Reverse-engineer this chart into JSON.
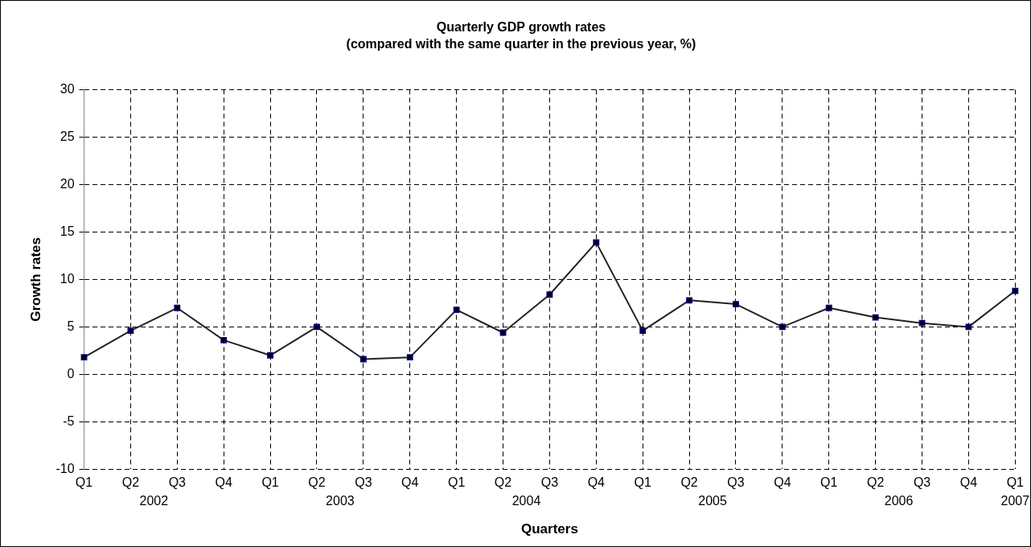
{
  "chart_data": {
    "type": "line",
    "title": "Quarterly GDP growth rates",
    "subtitle": "(compared with the same quarter in the previous year, %)",
    "xlabel": "Quarters",
    "ylabel": "Growth rates",
    "categories": [
      "Q1",
      "Q2",
      "Q3",
      "Q4",
      "Q1",
      "Q2",
      "Q3",
      "Q4",
      "Q1",
      "Q2",
      "Q3",
      "Q4",
      "Q1",
      "Q2",
      "Q3",
      "Q4",
      "Q1",
      "Q2",
      "Q3",
      "Q4",
      "Q1"
    ],
    "annotations": [
      "2002",
      "2003",
      "2004",
      "2005",
      "2006",
      "2007"
    ],
    "series": [
      {
        "color": "#000080",
        "values": [
          1.8,
          4.6,
          7.0,
          3.6,
          2.0,
          5.0,
          1.6,
          1.8,
          6.8,
          4.4,
          8.4,
          13.9,
          4.6,
          7.8,
          7.4,
          5.0,
          7.0,
          6.0,
          5.4,
          5.0,
          8.8
        ]
      }
    ],
    "ylim": [
      -10,
      30
    ],
    "yticks": [
      -10,
      -5,
      0,
      5,
      10,
      15,
      20,
      25,
      30
    ],
    "grid": true,
    "legend": false,
    "marker": "square",
    "line_style": "solid"
  }
}
